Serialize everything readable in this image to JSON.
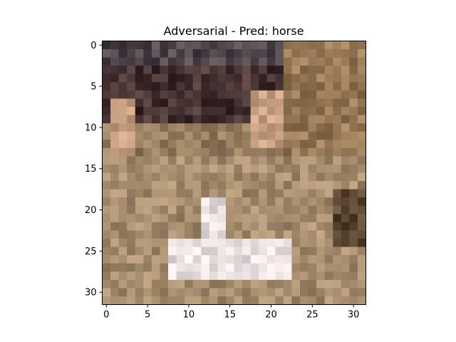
{
  "figure": {
    "title": "Adversarial - Pred: horse"
  },
  "image": {
    "description_name": "pixelated-cat-image",
    "grid_size": 32
  },
  "axes": {
    "x_ticks": [
      "0",
      "5",
      "10",
      "15",
      "20",
      "25",
      "30"
    ],
    "y_ticks": [
      "0",
      "5",
      "10",
      "15",
      "20",
      "25",
      "30"
    ],
    "x_tick_values": [
      0,
      5,
      10,
      15,
      20,
      25,
      30
    ],
    "y_tick_values": [
      0,
      5,
      10,
      15,
      20,
      25,
      30
    ]
  },
  "colors": {
    "frame": "#000000",
    "background": "#ffffff"
  }
}
